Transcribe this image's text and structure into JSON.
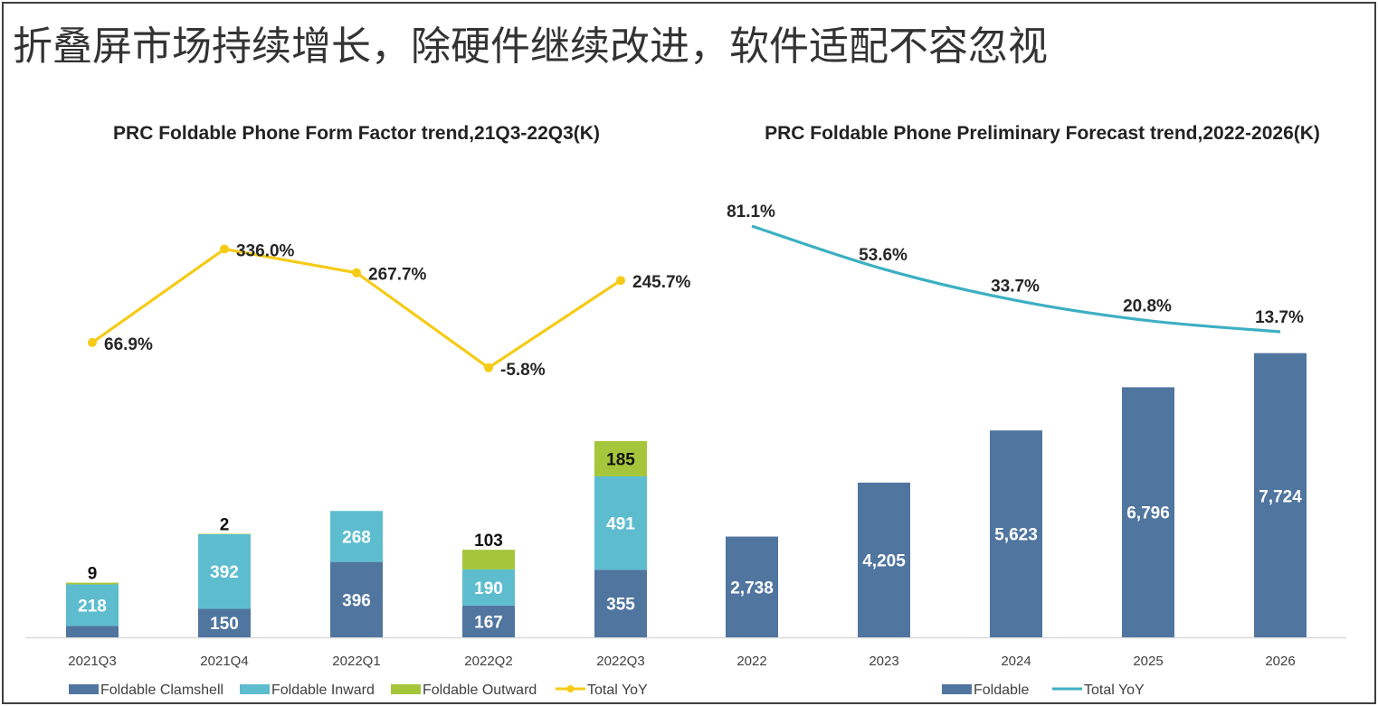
{
  "page": {
    "title": "折叠屏市场持续增长，除硬件继续改进，软件适配不容忽视"
  },
  "colors": {
    "clamshell": "#50759f",
    "inward": "#5dbdcf",
    "outward": "#a5c63a",
    "total_yoy_left": "#f5cb16",
    "foldable": "#50759f",
    "total_yoy_right": "#3cafc2",
    "frame": "#3f3f3f",
    "title_text": "#333333",
    "axis": "#d9d9d9"
  },
  "chart_data": [
    {
      "type": "bar",
      "stacked": true,
      "title": "PRC Foldable Phone Form Factor trend,21Q3-22Q3(K)",
      "categories": [
        "2021Q3",
        "2021Q4",
        "2022Q1",
        "2022Q2",
        "2022Q3"
      ],
      "series": [
        {
          "name": "Foldable Clamshell",
          "values": [
            60,
            150,
            396,
            167,
            355
          ],
          "value_labels": [
            "",
            "150",
            "396",
            "167",
            "355"
          ]
        },
        {
          "name": "Foldable Inward",
          "values": [
            218,
            392,
            268,
            190,
            491
          ],
          "value_labels": [
            "218",
            "392",
            "268",
            "190",
            "491"
          ]
        },
        {
          "name": "Foldable Outward",
          "values": [
            9,
            2,
            0,
            103,
            185
          ],
          "value_labels": [
            "9",
            "2",
            "",
            "103",
            "185"
          ]
        }
      ],
      "line_series": {
        "name": "Total YoY",
        "values": [
          66.9,
          336.0,
          267.7,
          -5.8,
          245.7
        ],
        "value_labels": [
          "66.9%",
          "336.0%",
          "267.7%",
          "-5.8%",
          "245.7%"
        ],
        "markers": true
      },
      "legend": [
        "Foldable Clamshell",
        "Foldable Inward",
        "Foldable Outward",
        "Total YoY"
      ],
      "legend_position": "bottom"
    },
    {
      "type": "bar",
      "title": "PRC Foldable Phone Preliminary Forecast  trend,2022-2026(K)",
      "categories": [
        "2022",
        "2023",
        "2024",
        "2025",
        "2026"
      ],
      "series": [
        {
          "name": "Foldable",
          "values": [
            2738,
            4205,
            5623,
            6796,
            7724
          ],
          "value_labels": [
            "2,738",
            "4,205",
            "5,623",
            "6,796",
            "7,724"
          ]
        }
      ],
      "line_series": {
        "name": "Total YoY",
        "values": [
          81.1,
          53.6,
          33.7,
          20.8,
          13.7
        ],
        "value_labels": [
          "81.1%",
          "53.6%",
          "33.7%",
          "20.8%",
          "13.7%"
        ],
        "markers": false
      },
      "legend": [
        "Foldable",
        "Total YoY"
      ],
      "legend_position": "bottom"
    }
  ]
}
